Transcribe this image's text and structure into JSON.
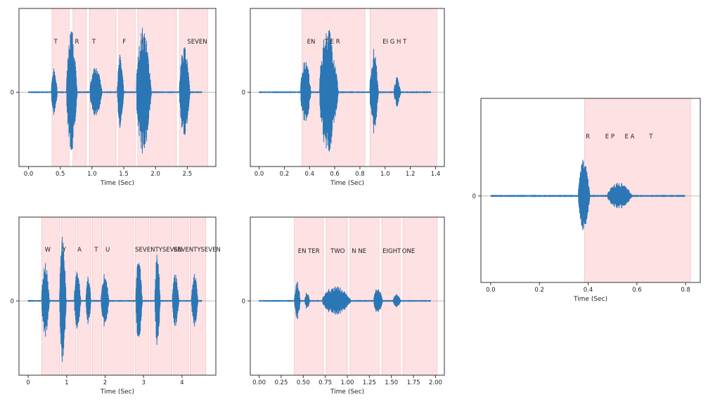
{
  "chart_data": [
    {
      "type": "line",
      "xlabel": "Time (Sec)",
      "xlim": [
        -0.15,
        2.95
      ],
      "xticks": [
        0.0,
        0.5,
        1.0,
        1.5,
        2.0,
        2.5
      ],
      "xtick_labels": [
        "0.0",
        "0.5",
        "1.0",
        "1.5",
        "2.0",
        "2.5"
      ],
      "yticks": [
        0
      ],
      "ytick_labels": [
        "0"
      ],
      "word_spans": [
        [
          0.37,
          0.64
        ],
        [
          0.7,
          0.91
        ],
        [
          0.96,
          1.38
        ],
        [
          1.42,
          1.68
        ],
        [
          1.72,
          2.33
        ],
        [
          2.38,
          2.82
        ]
      ],
      "annotations": [
        {
          "text": "T",
          "x": 0.4
        },
        {
          "text": "R",
          "x": 0.73
        },
        {
          "text": "T",
          "x": 1.0
        },
        {
          "text": "F",
          "x": 1.48
        },
        {
          "text": "I",
          "x": 1.78
        },
        {
          "text": "SEVEN",
          "x": 2.5
        }
      ],
      "bursts": [
        [
          0.36,
          0.5,
          0.35
        ],
        [
          0.6,
          0.85,
          0.9
        ],
        [
          0.97,
          1.25,
          0.4
        ],
        [
          1.4,
          1.55,
          0.55
        ],
        [
          1.7,
          2.05,
          0.95
        ],
        [
          2.38,
          2.62,
          0.7
        ]
      ]
    },
    {
      "type": "line",
      "xlabel": "Time (Sec)",
      "xlim": [
        -0.07,
        1.47
      ],
      "xticks": [
        0.0,
        0.2,
        0.4,
        0.6,
        0.8,
        1.0,
        1.2,
        1.4
      ],
      "xtick_labels": [
        "0.0",
        "0.2",
        "0.4",
        "0.6",
        "0.8",
        "1.0",
        "1.2",
        "1.4"
      ],
      "yticks": [
        0
      ],
      "ytick_labels": [
        "0"
      ],
      "word_spans": [
        [
          0.34,
          0.84
        ],
        [
          0.88,
          1.41
        ]
      ],
      "annotations": [
        {
          "text": "EN",
          "x": 0.38
        },
        {
          "text": "T E R",
          "x": 0.52
        },
        {
          "text": "EI G H T",
          "x": 0.98
        }
      ],
      "bursts": [
        [
          0.33,
          0.45,
          0.5
        ],
        [
          0.48,
          0.7,
          0.95
        ],
        [
          0.88,
          0.98,
          0.62
        ],
        [
          1.07,
          1.15,
          0.22
        ]
      ]
    },
    {
      "type": "line",
      "xlabel": "Time (Sec)",
      "xlim": [
        -0.04,
        0.86
      ],
      "xticks": [
        0.0,
        0.2,
        0.4,
        0.6,
        0.8
      ],
      "xtick_labels": [
        "0.0",
        "0.2",
        "0.4",
        "0.6",
        "0.8"
      ],
      "yticks": [
        0
      ],
      "ytick_labels": [
        "0"
      ],
      "word_spans": [
        [
          0.385,
          0.82
        ]
      ],
      "annotations": [
        {
          "text": "R",
          "x": 0.39
        },
        {
          "text": "E P",
          "x": 0.47
        },
        {
          "text": "E A",
          "x": 0.55
        },
        {
          "text": "T",
          "x": 0.65
        }
      ],
      "bursts": [
        [
          0.36,
          0.43,
          0.46
        ],
        [
          0.48,
          0.63,
          0.17
        ]
      ]
    },
    {
      "type": "line",
      "xlabel": "Time (Sec)",
      "xlim": [
        -0.24,
        4.88
      ],
      "xticks": [
        0,
        1,
        2,
        3,
        4
      ],
      "xtick_labels": [
        "0",
        "1",
        "2",
        "3",
        "4"
      ],
      "yticks": [
        0
      ],
      "ytick_labels": [
        "0"
      ],
      "word_spans": [
        [
          0.35,
          0.82
        ],
        [
          0.86,
          1.23
        ],
        [
          1.27,
          1.63
        ],
        [
          1.67,
          1.91
        ],
        [
          1.95,
          2.74
        ],
        [
          2.78,
          3.14
        ],
        [
          3.18,
          3.74
        ],
        [
          3.78,
          4.17
        ],
        [
          4.21,
          4.62
        ]
      ],
      "annotations": [
        {
          "text": "W",
          "x": 0.43
        },
        {
          "text": "Y",
          "x": 0.89
        },
        {
          "text": "A",
          "x": 1.28
        },
        {
          "text": "T",
          "x": 1.72
        },
        {
          "text": "U",
          "x": 2.01
        },
        {
          "text": "SEVENTYSEVEN",
          "x": 2.78
        },
        {
          "text": "SEVENTYSEVEN",
          "x": 3.78
        }
      ],
      "bursts": [
        [
          0.35,
          0.65,
          0.55
        ],
        [
          0.82,
          1.07,
          0.95
        ],
        [
          1.2,
          1.45,
          0.45
        ],
        [
          1.5,
          1.7,
          0.35
        ],
        [
          1.9,
          2.2,
          0.4
        ],
        [
          2.8,
          3.05,
          0.65
        ],
        [
          3.3,
          3.5,
          0.75
        ],
        [
          3.75,
          4.0,
          0.4
        ],
        [
          4.25,
          4.5,
          0.4
        ]
      ]
    },
    {
      "type": "line",
      "xlabel": "Time (Sec)",
      "xlim": [
        -0.1,
        2.1
      ],
      "xticks": [
        0.0,
        0.25,
        0.5,
        0.75,
        1.0,
        1.25,
        1.5,
        1.75,
        2.0
      ],
      "xtick_labels": [
        "0.00",
        "0.25",
        "0.50",
        "0.75",
        "1.00",
        "1.25",
        "1.50",
        "1.75",
        "2.00"
      ],
      "yticks": [
        0
      ],
      "ytick_labels": [
        "0"
      ],
      "word_spans": [
        [
          0.4,
          0.73
        ],
        [
          0.76,
          1.0
        ],
        [
          1.03,
          1.36
        ],
        [
          1.39,
          1.6
        ],
        [
          1.63,
          2.02
        ]
      ],
      "annotations": [
        {
          "text": "EN TER",
          "x": 0.44
        },
        {
          "text": "TWO",
          "x": 0.81
        },
        {
          "text": "N NE",
          "x": 1.05
        },
        {
          "text": "EIGHT",
          "x": 1.4
        },
        {
          "text": "ONE",
          "x": 1.62
        }
      ],
      "bursts": [
        [
          0.4,
          0.5,
          0.3
        ],
        [
          0.52,
          0.6,
          0.15
        ],
        [
          0.72,
          1.2,
          0.22
        ],
        [
          1.3,
          1.45,
          0.2
        ],
        [
          1.52,
          1.65,
          0.1
        ]
      ]
    }
  ]
}
